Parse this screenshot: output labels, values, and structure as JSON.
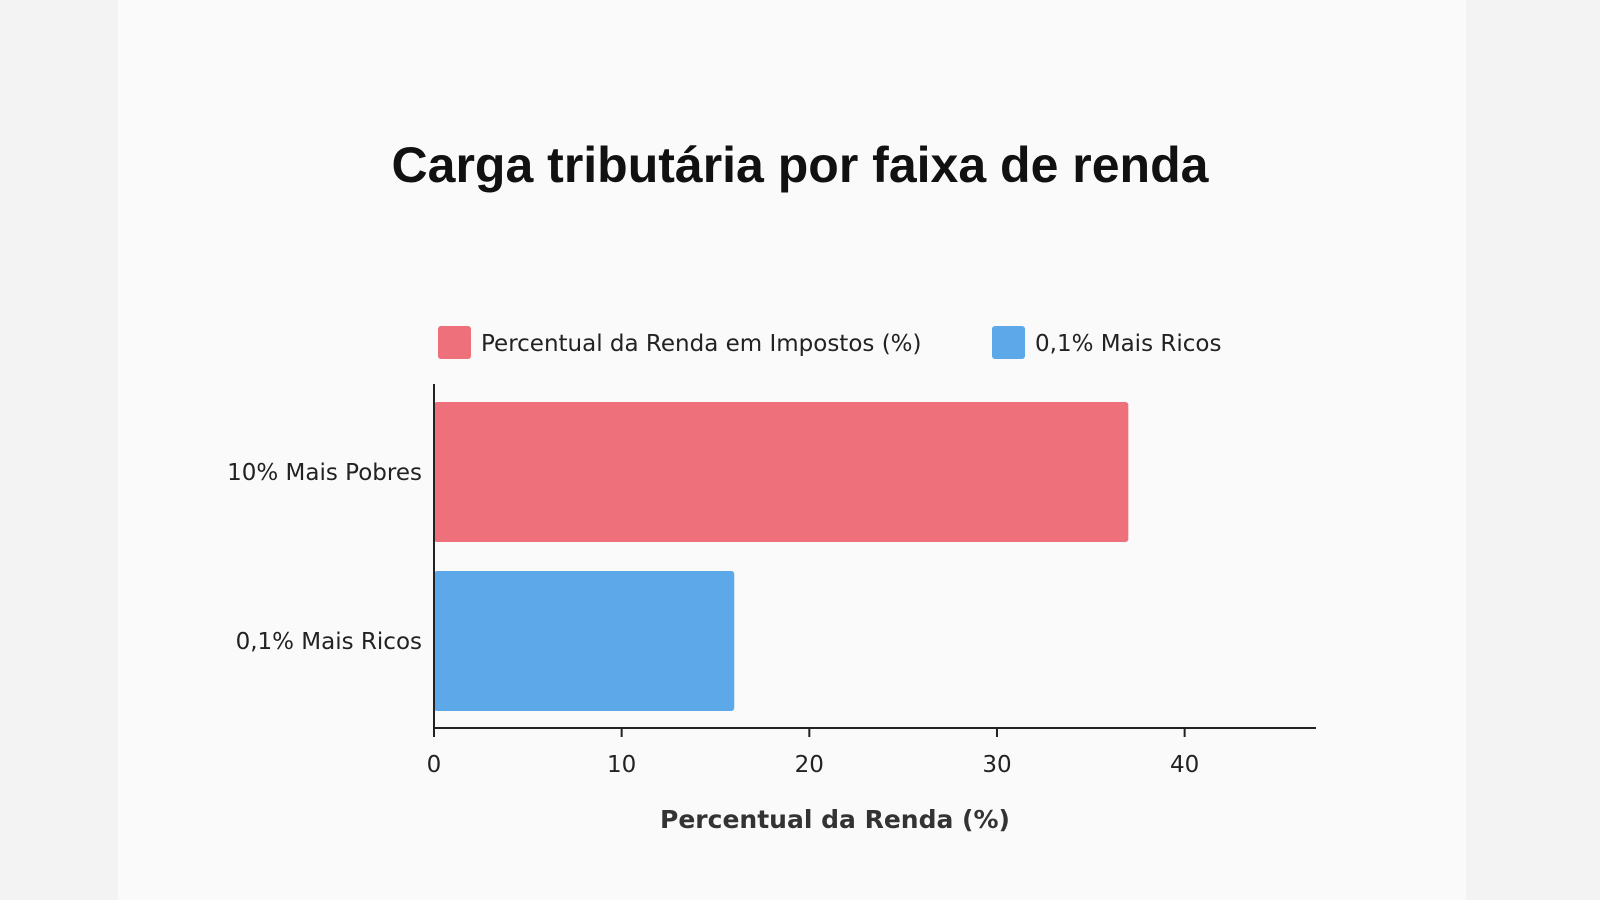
{
  "chart_data": {
    "type": "bar",
    "orientation": "horizontal",
    "title": "Carga tributária por faixa de renda",
    "xlabel": "Percentual da Renda (%)",
    "ylabel": "",
    "categories": [
      "10% Mais Pobres",
      "0,1% Mais Ricos"
    ],
    "values": [
      37,
      16
    ],
    "bar_colors": [
      "#ee707b",
      "#5ca8e8"
    ],
    "xlim": [
      0,
      47
    ],
    "xticks": [
      0,
      10,
      20,
      30,
      40
    ],
    "grid": false,
    "legend": {
      "placement": "top",
      "entries": [
        {
          "label": "Percentual da Renda em Impostos (%)",
          "color": "#ee707b"
        },
        {
          "label": "0,1% Mais Ricos",
          "color": "#5ca8e8"
        }
      ]
    }
  }
}
